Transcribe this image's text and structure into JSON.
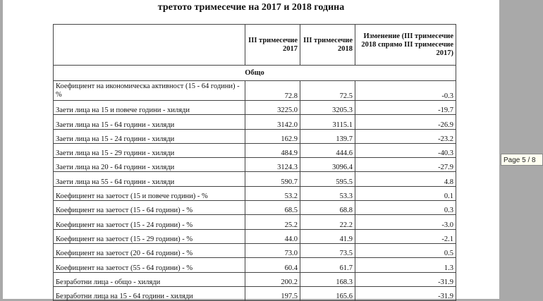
{
  "document": {
    "heading": "третото тримесечие на 2017 и 2018 година",
    "columns": {
      "q2017": "III тримесечие 2017",
      "q2018": "III тримесечие 2018",
      "change": "Изменение (III тримесечие 2018 спрямо III тримесечие 2017)"
    },
    "section": "Общо",
    "rows": [
      {
        "label": "Коефициент на икономическа активност (15 - 64 години) - %",
        "v2017": "72.8",
        "v2018": "72.5",
        "change": "-0.3"
      },
      {
        "label": "Заети лица на 15 и повече години - хиляди",
        "v2017": "3225.0",
        "v2018": "3205.3",
        "change": "-19.7"
      },
      {
        "label": "Заети лица на 15 - 64 години - хиляди",
        "v2017": "3142.0",
        "v2018": "3115.1",
        "change": "-26.9"
      },
      {
        "label": "Заети лица на 15 - 24 години - хиляди",
        "v2017": "162.9",
        "v2018": "139.7",
        "change": "-23.2"
      },
      {
        "label": "Заети лица на 15 - 29 години - хиляди",
        "v2017": "484.9",
        "v2018": "444.6",
        "change": "-40.3"
      },
      {
        "label": "Заети лица на 20 - 64 години - хиляди",
        "v2017": "3124.3",
        "v2018": "3096.4",
        "change": "-27.9"
      },
      {
        "label": "Заети лица на 55 - 64 години - хиляди",
        "v2017": "590.7",
        "v2018": "595.5",
        "change": "4.8"
      },
      {
        "label": "Коефициент на заетост (15 и повече години) - %",
        "v2017": "53.2",
        "v2018": "53.3",
        "change": "0.1"
      },
      {
        "label": "Коефициент на заетост (15 - 64 години) - %",
        "v2017": "68.5",
        "v2018": "68.8",
        "change": "0.3"
      },
      {
        "label": "Коефициент на заетост (15 - 24 години) - %",
        "v2017": "25.2",
        "v2018": "22.2",
        "change": "-3.0"
      },
      {
        "label": "Коефициент на заетост (15 - 29 години) - %",
        "v2017": "44.0",
        "v2018": "41.9",
        "change": "-2.1"
      },
      {
        "label": "Коефициент на заетост (20 - 64 години) - %",
        "v2017": "73.0",
        "v2018": "73.5",
        "change": "0.5"
      },
      {
        "label": "Коефициент на заетост (55 - 64 години) - %",
        "v2017": "60.4",
        "v2018": "61.7",
        "change": "1.3"
      },
      {
        "label": "Безработни лица - общо - хиляди",
        "v2017": "200.2",
        "v2018": "168.3",
        "change": "-31.9"
      },
      {
        "label": "Безработни лица на 15 - 64 години - хиляди",
        "v2017": "197.5",
        "v2018": "165.6",
        "change": "-31.9"
      }
    ]
  },
  "viewer": {
    "page_indicator": "Page 5 / 8"
  }
}
